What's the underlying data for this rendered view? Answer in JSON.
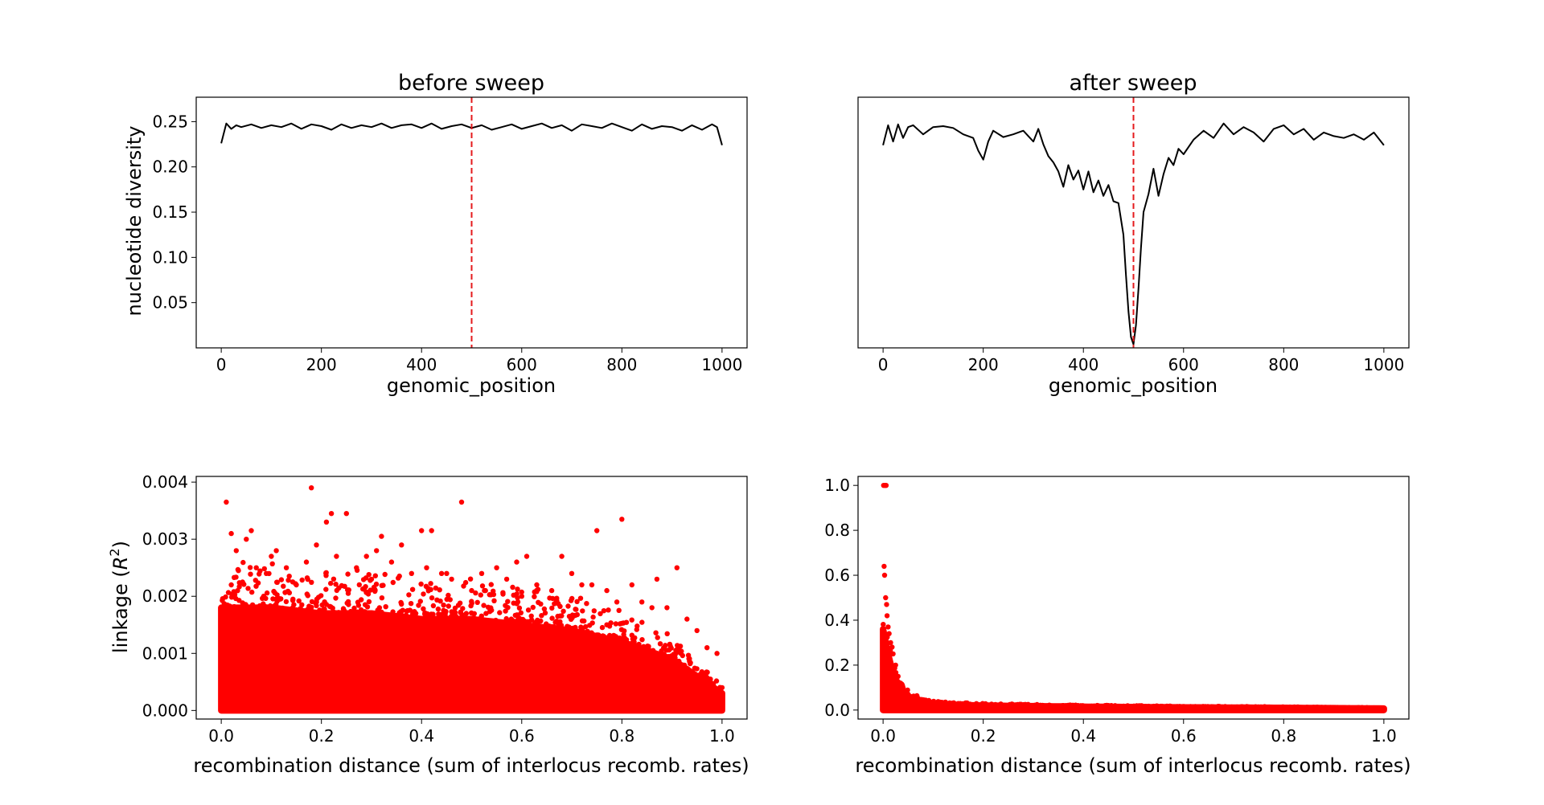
{
  "chart_data": [
    {
      "type": "line",
      "title": "before sweep",
      "xlabel": "genomic_position",
      "ylabel": "nucleotide diversity",
      "xlim": [
        -50,
        1050
      ],
      "ylim": [
        0,
        0.277
      ],
      "xticks": [
        0,
        200,
        400,
        600,
        800,
        1000
      ],
      "yticks": [
        0.05,
        0.1,
        0.15,
        0.2,
        0.25
      ],
      "xtick_labels": [
        "0",
        "200",
        "400",
        "600",
        "800",
        "1000"
      ],
      "ytick_labels": [
        "0.05",
        "0.10",
        "0.15",
        "0.20",
        "0.25"
      ],
      "line_color": "#000000",
      "marker": {
        "type": "vline",
        "x": 500,
        "color": "#e41a1c",
        "style": "dashed"
      },
      "series": [
        {
          "x": [
            0,
            10,
            20,
            30,
            40,
            60,
            80,
            100,
            120,
            140,
            160,
            180,
            200,
            220,
            240,
            260,
            280,
            300,
            320,
            340,
            360,
            380,
            400,
            420,
            440,
            460,
            480,
            500,
            520,
            540,
            560,
            580,
            600,
            620,
            640,
            660,
            680,
            700,
            720,
            740,
            760,
            780,
            800,
            820,
            840,
            860,
            880,
            900,
            920,
            940,
            960,
            980,
            990,
            1000
          ],
          "y": [
            0.226,
            0.248,
            0.242,
            0.246,
            0.244,
            0.247,
            0.243,
            0.246,
            0.244,
            0.248,
            0.242,
            0.247,
            0.245,
            0.241,
            0.247,
            0.243,
            0.246,
            0.244,
            0.248,
            0.243,
            0.246,
            0.247,
            0.243,
            0.248,
            0.242,
            0.245,
            0.247,
            0.243,
            0.246,
            0.241,
            0.244,
            0.247,
            0.242,
            0.245,
            0.248,
            0.243,
            0.246,
            0.24,
            0.247,
            0.245,
            0.243,
            0.248,
            0.244,
            0.24,
            0.247,
            0.242,
            0.245,
            0.244,
            0.24,
            0.246,
            0.241,
            0.247,
            0.244,
            0.224
          ]
        }
      ]
    },
    {
      "type": "line",
      "title": "after sweep",
      "xlabel": "genomic_position",
      "xlim": [
        -50,
        1050
      ],
      "ylim": [
        0,
        0.277
      ],
      "xticks": [
        0,
        200,
        400,
        600,
        800,
        1000
      ],
      "xtick_labels": [
        "0",
        "200",
        "400",
        "600",
        "800",
        "1000"
      ],
      "line_color": "#000000",
      "marker": {
        "type": "vline",
        "x": 500,
        "color": "#e41a1c",
        "style": "dashed"
      },
      "series": [
        {
          "x": [
            0,
            10,
            20,
            30,
            40,
            50,
            60,
            80,
            100,
            120,
            140,
            160,
            180,
            190,
            200,
            210,
            220,
            240,
            260,
            280,
            300,
            310,
            320,
            330,
            340,
            350,
            360,
            370,
            380,
            390,
            400,
            410,
            420,
            430,
            440,
            450,
            460,
            470,
            480,
            485,
            490,
            495,
            500,
            505,
            510,
            515,
            520,
            530,
            540,
            550,
            560,
            570,
            580,
            590,
            600,
            620,
            640,
            660,
            680,
            700,
            720,
            740,
            760,
            780,
            800,
            820,
            840,
            860,
            880,
            900,
            920,
            940,
            960,
            980,
            1000
          ],
          "y": [
            0.224,
            0.246,
            0.228,
            0.247,
            0.232,
            0.244,
            0.246,
            0.236,
            0.244,
            0.245,
            0.243,
            0.236,
            0.232,
            0.218,
            0.208,
            0.228,
            0.24,
            0.233,
            0.236,
            0.24,
            0.228,
            0.242,
            0.225,
            0.212,
            0.205,
            0.195,
            0.178,
            0.202,
            0.186,
            0.196,
            0.175,
            0.195,
            0.172,
            0.185,
            0.168,
            0.18,
            0.162,
            0.16,
            0.125,
            0.08,
            0.04,
            0.012,
            0.004,
            0.025,
            0.065,
            0.11,
            0.15,
            0.17,
            0.198,
            0.168,
            0.192,
            0.21,
            0.202,
            0.22,
            0.214,
            0.23,
            0.24,
            0.232,
            0.248,
            0.236,
            0.244,
            0.238,
            0.228,
            0.242,
            0.246,
            0.236,
            0.242,
            0.23,
            0.238,
            0.234,
            0.232,
            0.236,
            0.23,
            0.238,
            0.224
          ]
        }
      ]
    },
    {
      "type": "scatter",
      "xlabel": "recombination distance (sum of interlocus recomb. rates)",
      "ylabel": "linkage (R²)",
      "ylabel_main": "linkage (",
      "ylabel_var": "R",
      "ylabel_sup": "2",
      "ylabel_close": ")",
      "xlim": [
        -0.05,
        1.05
      ],
      "ylim": [
        -0.00015,
        0.0041
      ],
      "xticks": [
        0.0,
        0.2,
        0.4,
        0.6,
        0.8,
        1.0
      ],
      "yticks": [
        0.0,
        0.001,
        0.002,
        0.003,
        0.004
      ],
      "xtick_labels": [
        "0.0",
        "0.2",
        "0.4",
        "0.6",
        "0.8",
        "1.0"
      ],
      "ytick_labels": [
        "0.000",
        "0.001",
        "0.002",
        "0.003",
        "0.004"
      ],
      "marker_color": "#ff0000",
      "points": {
        "x": [
          0.01,
          0.02,
          0.03,
          0.05,
          0.06,
          0.07,
          0.09,
          0.11,
          0.13,
          0.15,
          0.17,
          0.18,
          0.19,
          0.21,
          0.22,
          0.23,
          0.25,
          0.27,
          0.29,
          0.31,
          0.32,
          0.34,
          0.36,
          0.38,
          0.4,
          0.41,
          0.42,
          0.44,
          0.46,
          0.48,
          0.5,
          0.52,
          0.55,
          0.57,
          0.59,
          0.61,
          0.63,
          0.66,
          0.68,
          0.7,
          0.72,
          0.75,
          0.77,
          0.79,
          0.8,
          0.82,
          0.84,
          0.87,
          0.89,
          0.91,
          0.93,
          0.95,
          0.97,
          0.99,
          1.0,
          0.02,
          0.1,
          0.3,
          0.45,
          0.6,
          0.74,
          0.86
        ],
        "y": [
          0.00365,
          0.0031,
          0.0028,
          0.003,
          0.00315,
          0.0025,
          0.0024,
          0.0028,
          0.0025,
          0.0022,
          0.0026,
          0.0039,
          0.0029,
          0.0033,
          0.00345,
          0.0027,
          0.00345,
          0.0025,
          0.0027,
          0.0028,
          0.00305,
          0.0026,
          0.0029,
          0.0024,
          0.00315,
          0.0025,
          0.00315,
          0.0024,
          0.0023,
          0.00365,
          0.0021,
          0.0024,
          0.0025,
          0.0023,
          0.0026,
          0.0027,
          0.0022,
          0.0021,
          0.0027,
          0.0024,
          0.0022,
          0.00315,
          0.0021,
          0.0019,
          0.00335,
          0.0022,
          0.0019,
          0.0023,
          0.0018,
          0.0025,
          0.0016,
          0.0014,
          0.0011,
          0.001,
          0.0004,
          0.0022,
          0.0027,
          0.0023,
          0.0024,
          0.002,
          0.0022,
          0.0018
        ]
      },
      "envelope": {
        "x": [
          0.0,
          0.1,
          0.2,
          0.3,
          0.4,
          0.5,
          0.6,
          0.7,
          0.8,
          0.9,
          0.95,
          1.0
        ],
        "ymax": [
          0.0018,
          0.0018,
          0.0017,
          0.0017,
          0.0016,
          0.0016,
          0.0015,
          0.0014,
          0.0012,
          0.0009,
          0.0006,
          0.0003
        ]
      }
    },
    {
      "type": "scatter",
      "xlabel": "recombination distance (sum of interlocus recomb. rates)",
      "xlim": [
        -0.05,
        1.05
      ],
      "ylim": [
        -0.04,
        1.04
      ],
      "xticks": [
        0.0,
        0.2,
        0.4,
        0.6,
        0.8,
        1.0
      ],
      "yticks": [
        0.0,
        0.2,
        0.4,
        0.6,
        0.8,
        1.0
      ],
      "xtick_labels": [
        "0.0",
        "0.2",
        "0.4",
        "0.6",
        "0.8",
        "1.0"
      ],
      "ytick_labels": [
        "0.0",
        "0.2",
        "0.4",
        "0.6",
        "0.8",
        "1.0"
      ],
      "marker_color": "#ff0000",
      "points": {
        "x": [
          0.001,
          0.004,
          0.006,
          0.002,
          0.003,
          0.005,
          0.007,
          0.008,
          0.01,
          0.012,
          0.015,
          0.018,
          0.02,
          0.025,
          0.03,
          0.035,
          0.04,
          0.05,
          0.06,
          0.07,
          0.08
        ],
        "y": [
          1.0,
          1.0,
          1.0,
          0.64,
          0.6,
          0.5,
          0.47,
          0.42,
          0.37,
          0.34,
          0.3,
          0.28,
          0.25,
          0.2,
          0.15,
          0.12,
          0.1,
          0.07,
          0.05,
          0.04,
          0.03
        ]
      },
      "envelope": {
        "x": [
          0.0,
          0.01,
          0.02,
          0.03,
          0.05,
          0.08,
          0.12,
          0.2,
          0.4,
          0.6,
          0.8,
          1.0
        ],
        "ymax": [
          0.36,
          0.25,
          0.16,
          0.1,
          0.06,
          0.035,
          0.025,
          0.02,
          0.015,
          0.012,
          0.01,
          0.007
        ]
      }
    }
  ]
}
